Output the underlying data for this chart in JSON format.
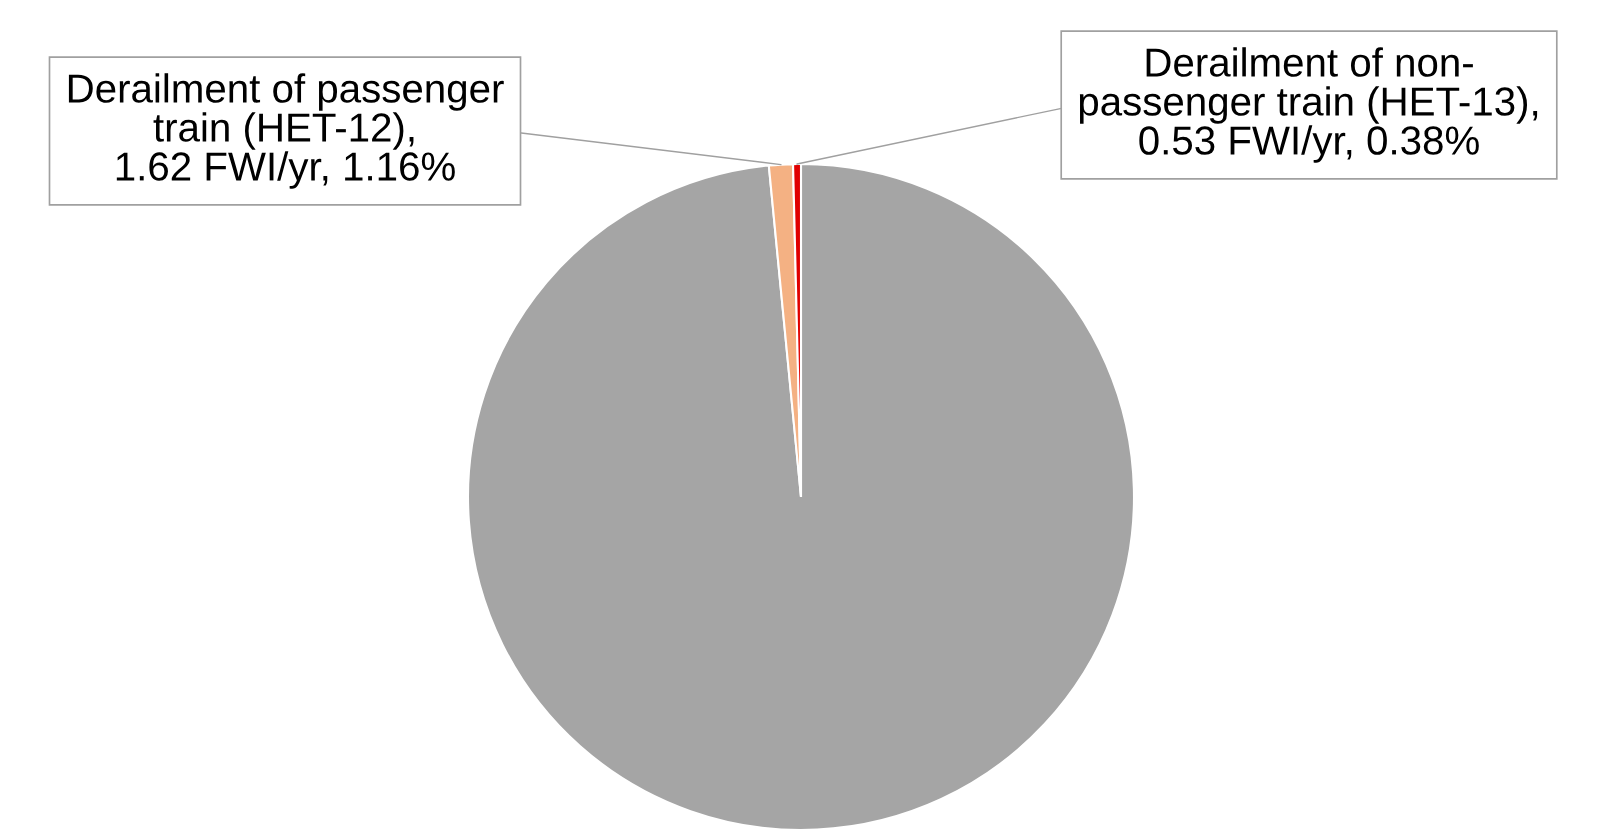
{
  "chart_data": {
    "type": "pie",
    "categories": [
      null,
      "Derailment of passenger\ntrain (HET-12),\n1.62 FWI/yr, 1.16%",
      "Derailment of non-\npassenger train (HET-13),\n0.53 FWI/yr, 0.38%"
    ],
    "values": [
      98.46,
      1.16,
      0.38
    ],
    "colors": [
      "#a5a5a5",
      "#f4b183",
      "#e00000"
    ],
    "legend": false
  }
}
